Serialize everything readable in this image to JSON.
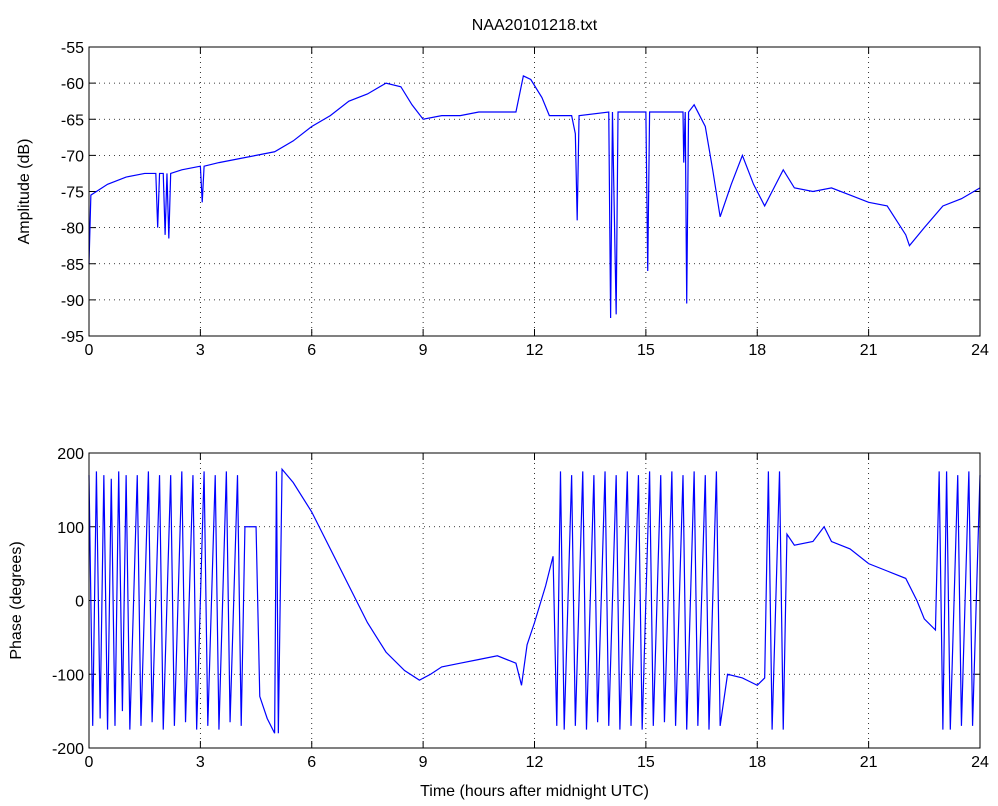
{
  "chart_data": [
    {
      "type": "line",
      "title": "NAA20101218.txt",
      "y_label": "Amplitude (dB)",
      "color": "#0000ff",
      "grid": true,
      "xlim": [
        0,
        24
      ],
      "xticks": [
        0,
        3,
        6,
        9,
        12,
        15,
        18,
        21,
        24
      ],
      "ylim": [
        -95,
        -55
      ],
      "yticks": [
        -95,
        -90,
        -85,
        -80,
        -75,
        -70,
        -65,
        -60,
        -55
      ],
      "x": [
        0,
        0.05,
        0.5,
        1,
        1.5,
        1.8,
        1.85,
        1.9,
        2.0,
        2.05,
        2.1,
        2.15,
        2.2,
        2.5,
        3,
        3.05,
        3.1,
        3.5,
        4,
        4.5,
        5,
        5.5,
        6,
        6.5,
        7,
        7.5,
        8,
        8.4,
        8.7,
        9,
        9.5,
        10,
        10.5,
        11,
        11.5,
        11.7,
        11.9,
        12.2,
        12.4,
        13,
        13.1,
        13.15,
        13.2,
        14,
        14.05,
        14.1,
        14.2,
        14.25,
        15,
        15.05,
        15.1,
        16,
        16.02,
        16.06,
        16.1,
        16.15,
        16.3,
        16.6,
        16.8,
        17,
        17.3,
        17.6,
        17.9,
        18.2,
        18.5,
        18.7,
        19,
        19.5,
        20,
        20.5,
        21,
        21.5,
        22,
        22.1,
        22.5,
        23,
        23.5,
        24
      ],
      "values": [
        -85,
        -75.5,
        -74,
        -73,
        -72.5,
        -72.5,
        -80,
        -72.5,
        -72.5,
        -81,
        -72.5,
        -81.5,
        -72.5,
        -72,
        -71.5,
        -76.5,
        -71.5,
        -71,
        -70.5,
        -70,
        -69.5,
        -68,
        -66,
        -64.5,
        -62.5,
        -61.5,
        -60,
        -60.5,
        -63,
        -65,
        -64.5,
        -64.5,
        -64,
        -64,
        -64,
        -59,
        -59.5,
        -62,
        -64.5,
        -64.5,
        -67,
        -79,
        -64.5,
        -64,
        -92.5,
        -64,
        -92,
        -64,
        -64,
        -86,
        -64,
        -64,
        -71,
        -64,
        -90.5,
        -64,
        -63,
        -66,
        -72,
        -78.5,
        -74,
        -70,
        -74,
        -77,
        -74,
        -72,
        -74.5,
        -75,
        -74.5,
        -75.5,
        -76.5,
        -77,
        -81,
        -82.5,
        -80,
        -77,
        -76,
        -74.5
      ]
    },
    {
      "type": "line",
      "x_label": "Time (hours after midnight UTC)",
      "y_label": "Phase (degrees)",
      "color": "#0000ff",
      "grid": true,
      "xlim": [
        0,
        24
      ],
      "xticks": [
        0,
        3,
        6,
        9,
        12,
        15,
        18,
        21,
        24
      ],
      "ylim": [
        -200,
        200
      ],
      "yticks": [
        -200,
        -100,
        0,
        100,
        200
      ],
      "x": [
        0,
        0.1,
        0.2,
        0.3,
        0.4,
        0.5,
        0.6,
        0.7,
        0.8,
        0.9,
        1.0,
        1.1,
        1.3,
        1.4,
        1.6,
        1.7,
        1.9,
        2.0,
        2.2,
        2.3,
        2.5,
        2.6,
        2.8,
        2.9,
        3.1,
        3.2,
        3.4,
        3.5,
        3.7,
        3.8,
        4.0,
        4.1,
        4.2,
        4.5,
        4.6,
        4.8,
        5.0,
        5.05,
        5.1,
        5.2,
        5.5,
        6,
        6.5,
        7,
        7.5,
        8,
        8.5,
        8.9,
        9.2,
        9.5,
        10,
        10.5,
        11,
        11.5,
        11.65,
        11.8,
        12,
        12.3,
        12.5,
        12.6,
        12.7,
        12.8,
        13.0,
        13.1,
        13.3,
        13.4,
        13.6,
        13.7,
        13.9,
        14.0,
        14.2,
        14.3,
        14.5,
        14.6,
        14.8,
        14.9,
        15.1,
        15.2,
        15.4,
        15.5,
        15.7,
        15.8,
        16.0,
        16.1,
        16.3,
        16.4,
        16.6,
        16.7,
        16.9,
        17.0,
        17.2,
        17.6,
        17.8,
        18.0,
        18.2,
        18.3,
        18.4,
        18.6,
        18.7,
        18.8,
        19,
        19.5,
        19.8,
        20,
        20.5,
        21,
        21.5,
        22,
        22.3,
        22.5,
        22.8,
        22.9,
        23.0,
        23.1,
        23.2,
        23.4,
        23.5,
        23.7,
        23.8,
        24
      ],
      "values": [
        170,
        -170,
        175,
        -160,
        170,
        -175,
        165,
        -170,
        175,
        -150,
        170,
        -175,
        170,
        -170,
        175,
        -165,
        170,
        -175,
        170,
        -170,
        175,
        -165,
        170,
        -175,
        175,
        -170,
        170,
        -175,
        175,
        -165,
        170,
        -170,
        100,
        100,
        -130,
        -160,
        -180,
        175,
        -180,
        178,
        160,
        120,
        70,
        20,
        -30,
        -70,
        -95,
        -108,
        -100,
        -90,
        -85,
        -80,
        -75,
        -85,
        -115,
        -60,
        -30,
        20,
        60,
        -170,
        175,
        -175,
        170,
        -170,
        175,
        -175,
        170,
        -165,
        175,
        -170,
        170,
        -175,
        175,
        -170,
        170,
        -175,
        175,
        -170,
        170,
        -165,
        175,
        -170,
        170,
        -175,
        175,
        -170,
        170,
        -175,
        175,
        -170,
        -100,
        -105,
        -110,
        -115,
        -105,
        175,
        -175,
        175,
        -175,
        90,
        75,
        80,
        100,
        80,
        70,
        50,
        40,
        30,
        0,
        -25,
        -40,
        175,
        -175,
        175,
        -175,
        170,
        -170,
        175,
        -170,
        170
      ]
    }
  ]
}
